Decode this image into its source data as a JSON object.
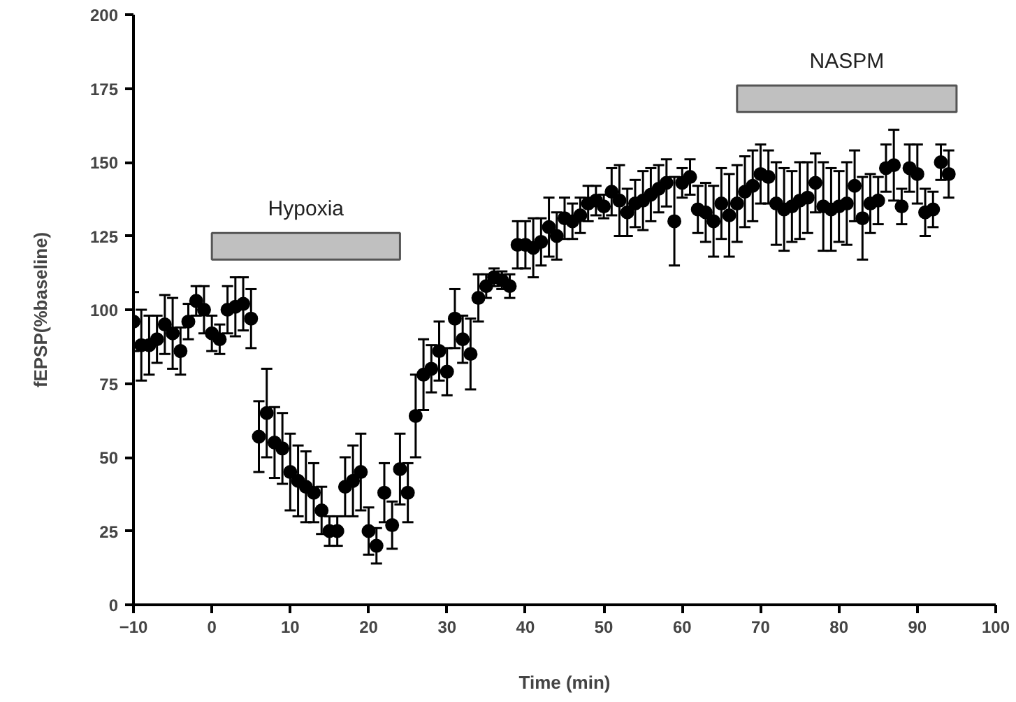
{
  "chart_data": {
    "type": "scatter",
    "xlabel": "Time (min)",
    "ylabel": "fEPSP(%baseline)",
    "x": [
      -10,
      -9,
      -8,
      -7,
      -6,
      -5,
      -4,
      -3,
      -2,
      -1,
      0,
      1,
      2,
      3,
      4,
      5,
      6,
      7,
      8,
      9,
      10,
      11,
      12,
      13,
      14,
      15,
      16,
      17,
      18,
      19,
      20,
      21,
      22,
      23,
      24,
      25,
      26,
      27,
      28,
      29,
      30,
      31,
      32,
      33,
      34,
      35,
      36,
      37,
      38,
      39,
      40,
      41,
      42,
      43,
      44,
      45,
      46,
      47,
      48,
      49,
      50,
      51,
      52,
      53,
      54,
      55,
      56,
      57,
      58,
      59,
      60,
      61,
      62,
      63,
      64,
      65,
      66,
      67,
      68,
      69,
      70,
      71,
      72,
      73,
      74,
      75,
      76,
      77,
      78,
      79,
      80,
      81,
      82,
      83,
      84,
      85,
      86,
      87,
      88,
      89,
      90,
      91,
      92,
      93,
      94
    ],
    "values": [
      96,
      88,
      88,
      90,
      95,
      92,
      86,
      96,
      103,
      100,
      92,
      90,
      100,
      101,
      102,
      97,
      57,
      65,
      55,
      53,
      45,
      42,
      40,
      38,
      32,
      25,
      25,
      40,
      42,
      45,
      25,
      20,
      38,
      27,
      46,
      38,
      64,
      78,
      80,
      86,
      79,
      97,
      90,
      85,
      104,
      108,
      111,
      110,
      108,
      122,
      122,
      121,
      123,
      128,
      125,
      131,
      130,
      132,
      136,
      137,
      135,
      140,
      137,
      133,
      136,
      137,
      139,
      141,
      143,
      130,
      143,
      145,
      134,
      133,
      130,
      136,
      132,
      136,
      140,
      142,
      146,
      145,
      136,
      134,
      135,
      137,
      138,
      143,
      135,
      134,
      135,
      136,
      142,
      131,
      136,
      137,
      148,
      149,
      135,
      148,
      146,
      133,
      134,
      150,
      146
    ],
    "errors": [
      10,
      12,
      10,
      8,
      10,
      12,
      8,
      6,
      5,
      8,
      6,
      5,
      8,
      10,
      9,
      10,
      12,
      15,
      12,
      12,
      13,
      12,
      12,
      10,
      8,
      5,
      5,
      10,
      12,
      13,
      8,
      6,
      10,
      8,
      12,
      10,
      14,
      12,
      8,
      10,
      8,
      10,
      8,
      12,
      8,
      4,
      3,
      3,
      4,
      8,
      8,
      10,
      8,
      10,
      8,
      7,
      6,
      6,
      6,
      5,
      4,
      8,
      12,
      8,
      8,
      10,
      9,
      8,
      8,
      15,
      5,
      6,
      8,
      10,
      12,
      12,
      14,
      13,
      12,
      12,
      10,
      9,
      14,
      14,
      12,
      13,
      12,
      10,
      15,
      14,
      12,
      14,
      12,
      14,
      10,
      8,
      8,
      12,
      6,
      8,
      10,
      8,
      6,
      6,
      8
    ],
    "color": "#000000",
    "marker": "circle",
    "xlim": [
      -10,
      100
    ],
    "xticks": [
      -10,
      0,
      10,
      20,
      30,
      40,
      50,
      60,
      70,
      80,
      90,
      100
    ],
    "ylim": [
      0,
      200
    ],
    "yticks": [
      0,
      25,
      50,
      75,
      100,
      125,
      150,
      175,
      200
    ],
    "grid": false,
    "bands": [
      {
        "axis": "x",
        "from": 0,
        "to": 24,
        "label": "Hypoxia",
        "color": "#c0c0c0"
      },
      {
        "axis": "x",
        "from": 67,
        "to": 95,
        "label": "NASPM",
        "color": "#c0c0c0"
      }
    ]
  }
}
